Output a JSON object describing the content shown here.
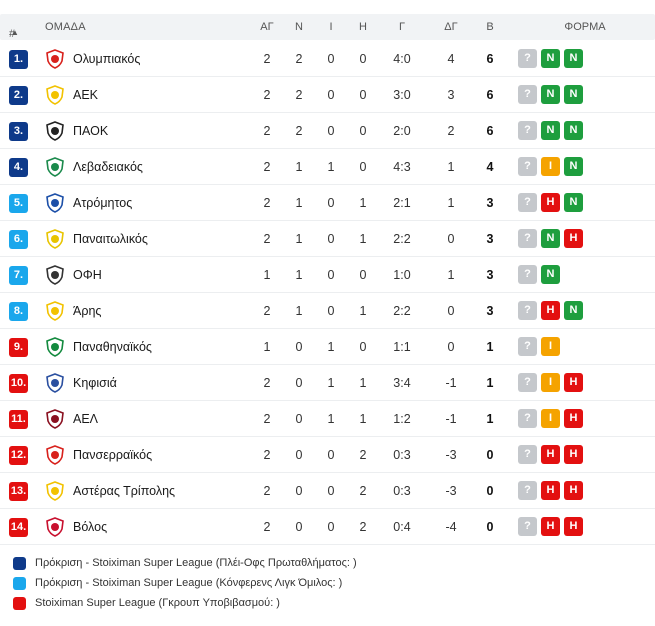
{
  "headers": {
    "pos": "#",
    "sort_arrow": "▲",
    "team": "ΟΜΑΔΑ",
    "played": "ΑΓ",
    "won": "Ν",
    "drawn": "Ι",
    "lost": "Η",
    "goals": "Γ",
    "diff": "ΔΓ",
    "points": "Β",
    "form": "ΦΟΡΜΑ"
  },
  "colors": {
    "playoff": "#0e3a8a",
    "conference": "#1aa7ec",
    "relegation": "#e31010",
    "win": "#1e9e3e",
    "draw": "#f5a300",
    "loss": "#e31010",
    "unknown": "#c5c8cc"
  },
  "rows": [
    {
      "pos": "1.",
      "zone": "playoff",
      "team": "Ολυμπιακός",
      "logo_icon": "olympiacos-crest-icon",
      "logo_color": "#d8211c",
      "p": "2",
      "w": "2",
      "d": "0",
      "l": "0",
      "g": "4:0",
      "gd": "4",
      "pts": "6",
      "form": [
        "?",
        "Ν",
        "Ν"
      ]
    },
    {
      "pos": "2.",
      "zone": "playoff",
      "team": "ΑΕΚ",
      "logo_icon": "aek-crest-icon",
      "logo_color": "#f2c200",
      "p": "2",
      "w": "2",
      "d": "0",
      "l": "0",
      "g": "3:0",
      "gd": "3",
      "pts": "6",
      "form": [
        "?",
        "Ν",
        "Ν"
      ]
    },
    {
      "pos": "3.",
      "zone": "playoff",
      "team": "ΠΑΟΚ",
      "logo_icon": "paok-crest-icon",
      "logo_color": "#222222",
      "p": "2",
      "w": "2",
      "d": "0",
      "l": "0",
      "g": "2:0",
      "gd": "2",
      "pts": "6",
      "form": [
        "?",
        "Ν",
        "Ν"
      ]
    },
    {
      "pos": "4.",
      "zone": "playoff",
      "team": "Λεβαδειακός",
      "logo_icon": "levadiakos-crest-icon",
      "logo_color": "#1b8a4c",
      "p": "2",
      "w": "1",
      "d": "1",
      "l": "0",
      "g": "4:3",
      "gd": "1",
      "pts": "4",
      "form": [
        "?",
        "Ι",
        "Ν"
      ]
    },
    {
      "pos": "5.",
      "zone": "conference",
      "team": "Ατρόμητος",
      "logo_icon": "atromitos-crest-icon",
      "logo_color": "#1c4fa8",
      "p": "2",
      "w": "1",
      "d": "0",
      "l": "1",
      "g": "2:1",
      "gd": "1",
      "pts": "3",
      "form": [
        "?",
        "Η",
        "Ν"
      ]
    },
    {
      "pos": "6.",
      "zone": "conference",
      "team": "Παναιτωλικός",
      "logo_icon": "panaitolikos-crest-icon",
      "logo_color": "#e8c400",
      "p": "2",
      "w": "1",
      "d": "0",
      "l": "1",
      "g": "2:2",
      "gd": "0",
      "pts": "3",
      "form": [
        "?",
        "Ν",
        "Η"
      ]
    },
    {
      "pos": "7.",
      "zone": "conference",
      "team": "ΟΦΗ",
      "logo_icon": "ofi-crest-icon",
      "logo_color": "#333333",
      "p": "1",
      "w": "1",
      "d": "0",
      "l": "0",
      "g": "1:0",
      "gd": "1",
      "pts": "3",
      "form": [
        "?",
        "Ν"
      ]
    },
    {
      "pos": "8.",
      "zone": "conference",
      "team": "Άρης",
      "logo_icon": "aris-crest-icon",
      "logo_color": "#f2c200",
      "p": "2",
      "w": "1",
      "d": "0",
      "l": "1",
      "g": "2:2",
      "gd": "0",
      "pts": "3",
      "form": [
        "?",
        "Η",
        "Ν"
      ]
    },
    {
      "pos": "9.",
      "zone": "relegation",
      "team": "Παναθηναϊκός",
      "logo_icon": "panathinaikos-crest-icon",
      "logo_color": "#138a3e",
      "p": "1",
      "w": "0",
      "d": "1",
      "l": "0",
      "g": "1:1",
      "gd": "0",
      "pts": "1",
      "form": [
        "?",
        "Ι"
      ]
    },
    {
      "pos": "10.",
      "zone": "relegation",
      "team": "Κηφισιά",
      "logo_icon": "kifisia-crest-icon",
      "logo_color": "#2a4fa0",
      "p": "2",
      "w": "0",
      "d": "1",
      "l": "1",
      "g": "3:4",
      "gd": "-1",
      "pts": "1",
      "form": [
        "?",
        "Ι",
        "Η"
      ]
    },
    {
      "pos": "11.",
      "zone": "relegation",
      "team": "ΑΕΛ",
      "logo_icon": "ael-crest-icon",
      "logo_color": "#8a1020",
      "p": "2",
      "w": "0",
      "d": "1",
      "l": "1",
      "g": "1:2",
      "gd": "-1",
      "pts": "1",
      "form": [
        "?",
        "Ι",
        "Η"
      ]
    },
    {
      "pos": "12.",
      "zone": "relegation",
      "team": "Πανσερραϊκός",
      "logo_icon": "panserraikos-crest-icon",
      "logo_color": "#d8211c",
      "p": "2",
      "w": "0",
      "d": "0",
      "l": "2",
      "g": "0:3",
      "gd": "-3",
      "pts": "0",
      "form": [
        "?",
        "Η",
        "Η"
      ]
    },
    {
      "pos": "13.",
      "zone": "relegation",
      "team": "Αστέρας Τρίπολης",
      "logo_icon": "asteras-crest-icon",
      "logo_color": "#f2c200",
      "p": "2",
      "w": "0",
      "d": "0",
      "l": "2",
      "g": "0:3",
      "gd": "-3",
      "pts": "0",
      "form": [
        "?",
        "Η",
        "Η"
      ]
    },
    {
      "pos": "14.",
      "zone": "relegation",
      "team": "Βόλος",
      "logo_icon": "volos-crest-icon",
      "logo_color": "#c8102e",
      "p": "2",
      "w": "0",
      "d": "0",
      "l": "2",
      "g": "0:4",
      "gd": "-4",
      "pts": "0",
      "form": [
        "?",
        "Η",
        "Η"
      ]
    }
  ],
  "legend": [
    {
      "zone": "playoff",
      "text": "Πρόκριση - Stoiximan Super League (Πλέι-Οφς Πρωταθλήματος: )"
    },
    {
      "zone": "conference",
      "text": "Πρόκριση - Stoiximan Super League (Κόνφερενς Λιγκ Όμιλος: )"
    },
    {
      "zone": "relegation",
      "text": "Stoiximan Super League (Γκρουπ Υποβιβασμού: )"
    }
  ]
}
